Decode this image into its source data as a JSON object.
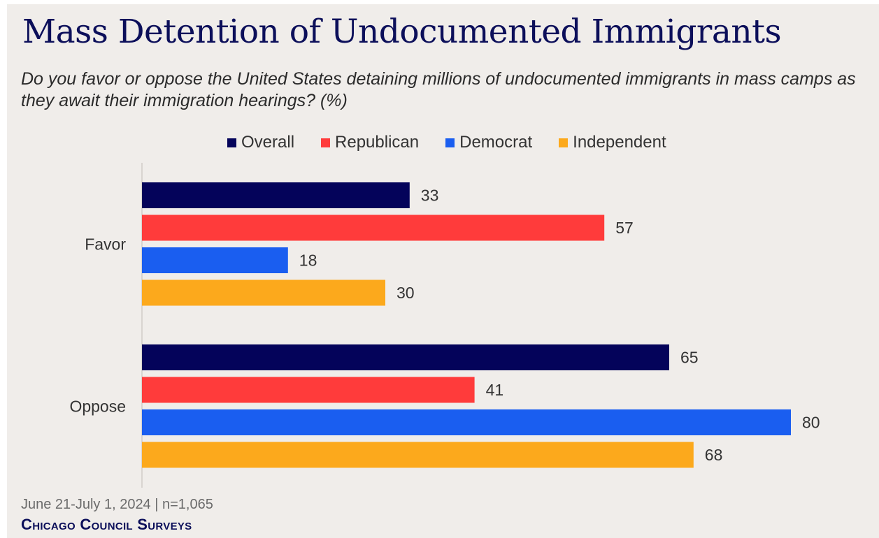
{
  "title": "Mass Detention of Undocumented Immigrants",
  "subtitle": "Do you favor or oppose the United States detaining millions of undocumented immigrants in mass camps as they await their immigration hearings? (%)",
  "footer": {
    "date_sample": "June 21-July 1, 2024 | n=1,065",
    "brand": "Chicago Council Surveys"
  },
  "colors": {
    "Overall": "#04035a",
    "Republican": "#ff3b3b",
    "Democrat": "#1a5ef0",
    "Independent": "#fca91c"
  },
  "chart_data": {
    "type": "bar",
    "orientation": "horizontal",
    "categories": [
      "Favor",
      "Oppose"
    ],
    "series": [
      {
        "name": "Overall",
        "values": [
          33,
          65
        ]
      },
      {
        "name": "Republican",
        "values": [
          57,
          41
        ]
      },
      {
        "name": "Democrat",
        "values": [
          18,
          80
        ]
      },
      {
        "name": "Independent",
        "values": [
          30,
          68
        ]
      }
    ],
    "xlim": [
      0,
      100
    ],
    "legend_position": "top",
    "data_labels": true,
    "grid": false
  }
}
